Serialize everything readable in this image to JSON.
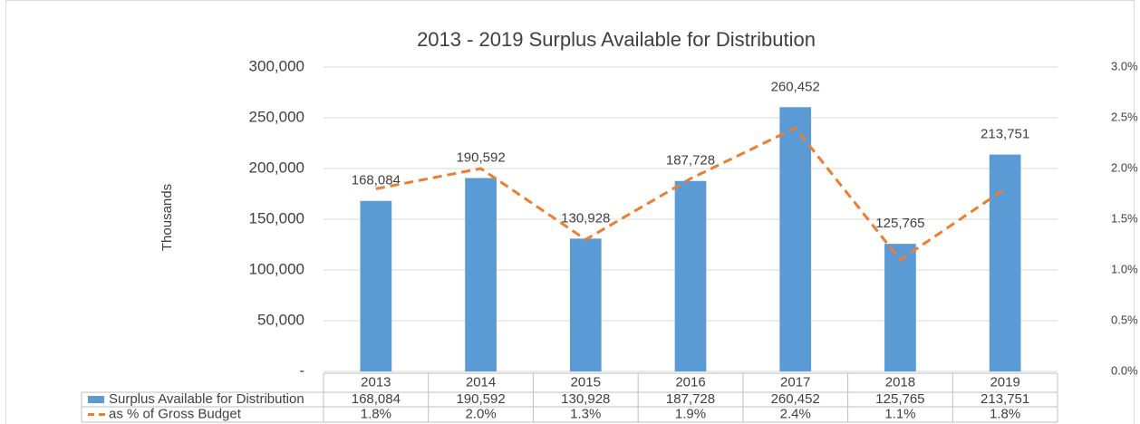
{
  "chart_data": {
    "type": "bar",
    "title": "2013 - 2019 Surplus Available for Distribution",
    "ylabel": "Thousands",
    "categories": [
      "2013",
      "2014",
      "2015",
      "2016",
      "2017",
      "2018",
      "2019"
    ],
    "series": [
      {
        "name": "Surplus Available for Distribution",
        "type": "bar",
        "color": "#5b9bd5",
        "values": [
          168084,
          190592,
          130928,
          187728,
          260452,
          125765,
          213751
        ],
        "value_labels": [
          "168,084",
          "190,592",
          "130,928",
          "187,728",
          "260,452",
          "125,765",
          "213,751"
        ]
      },
      {
        "name": "as % of Gross Budget",
        "type": "line",
        "axis": "y2",
        "color": "#ed7d31",
        "dashed": true,
        "values": [
          1.8,
          2.0,
          1.3,
          1.9,
          2.4,
          1.1,
          1.8
        ],
        "value_labels": [
          "1.8%",
          "2.0%",
          "1.3%",
          "1.9%",
          "2.4%",
          "1.1%",
          "1.8%"
        ]
      }
    ],
    "ylim": [
      0,
      300000
    ],
    "yticks": [
      {
        "value": 0,
        "label": "-"
      },
      {
        "value": 50000,
        "label": "50,000"
      },
      {
        "value": 100000,
        "label": "100,000"
      },
      {
        "value": 150000,
        "label": "150,000"
      },
      {
        "value": 200000,
        "label": "200,000"
      },
      {
        "value": 250000,
        "label": "250,000"
      },
      {
        "value": 300000,
        "label": "300,000"
      }
    ],
    "y2lim": [
      0,
      3.0
    ],
    "y2ticks": [
      {
        "value": 0,
        "label": "0.0%"
      },
      {
        "value": 0.5,
        "label": "0.5%"
      },
      {
        "value": 1.0,
        "label": "1.0%"
      },
      {
        "value": 1.5,
        "label": "1.5%"
      },
      {
        "value": 2.0,
        "label": "2.0%"
      },
      {
        "value": 2.5,
        "label": "2.5%"
      },
      {
        "value": 3.0,
        "label": "3.0%"
      }
    ],
    "grid": true,
    "data_table": true
  }
}
